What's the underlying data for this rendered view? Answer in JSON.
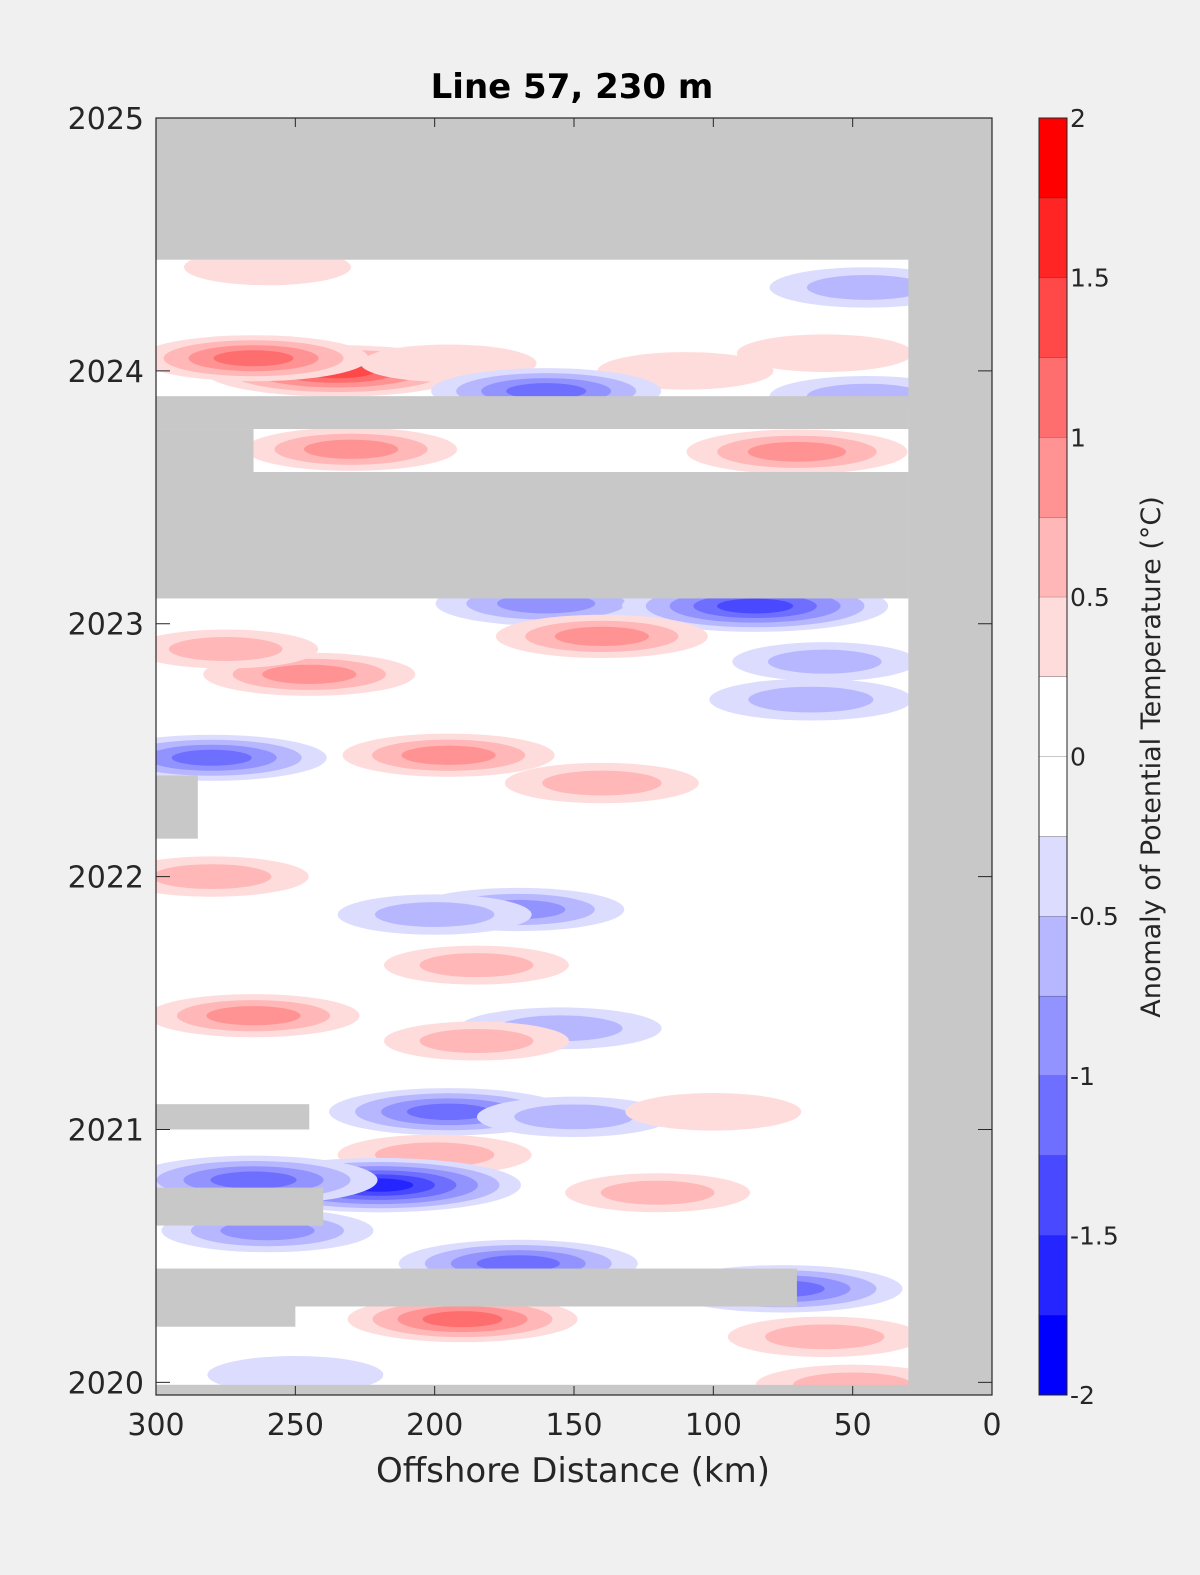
{
  "chart_data": {
    "type": "heatmap",
    "title": "Line 57, 230 m",
    "xlabel": "Offshore Distance (km)",
    "ylabel": "",
    "xlim": [
      300,
      0
    ],
    "ylim": [
      2019.95,
      2025
    ],
    "x_ticks": [
      "300",
      "250",
      "200",
      "150",
      "100",
      "50",
      "0"
    ],
    "x_tick_values": [
      300,
      250,
      200,
      150,
      100,
      50,
      0
    ],
    "y_ticks": [
      "2020",
      "2021",
      "2022",
      "2023",
      "2024",
      "2025"
    ],
    "y_tick_values": [
      2020,
      2021,
      2022,
      2023,
      2024,
      2025
    ],
    "colorbar": {
      "label": "Anomaly of Potential Temperature (°C)",
      "range": [
        -2,
        2
      ],
      "step": 0.25,
      "tick_labels": [
        "2",
        "1.5",
        "1",
        "0.5",
        "0",
        "-0.5",
        "-1",
        "-1.5",
        "-2"
      ],
      "tick_values": [
        2,
        1.5,
        1,
        0.5,
        0,
        -0.5,
        -1,
        -1.5,
        -2
      ]
    },
    "colors": {
      "no_data": "#c8c8c8",
      "axes_background": "#c8c8c8",
      "figure_background": "#f0f0f0",
      "warm_max": "#ff0000",
      "cold_max": "#0000ff"
    },
    "no_data_regions": [
      {
        "x": [
          300,
          0
        ],
        "y": [
          2024.44,
          2025
        ]
      },
      {
        "x": [
          30,
          0
        ],
        "y": [
          2019.95,
          2025
        ]
      },
      {
        "x": [
          300,
          30
        ],
        "y": [
          2023.1,
          2023.6
        ]
      },
      {
        "x": [
          300,
          30
        ],
        "y": [
          2023.77,
          2023.9
        ]
      },
      {
        "x": [
          300,
          265
        ],
        "y": [
          2023.6,
          2023.77
        ]
      },
      {
        "x": [
          300,
          285
        ],
        "y": [
          2022.15,
          2022.4
        ]
      },
      {
        "x": [
          300,
          245
        ],
        "y": [
          2021.0,
          2021.1
        ]
      },
      {
        "x": [
          300,
          240
        ],
        "y": [
          2020.62,
          2020.77
        ]
      },
      {
        "x": [
          300,
          70
        ],
        "y": [
          2020.3,
          2020.45
        ]
      },
      {
        "x": [
          300,
          250
        ],
        "y": [
          2020.22,
          2020.3
        ]
      },
      {
        "x": [
          300,
          30
        ],
        "y": [
          2019.95,
          2019.99
        ]
      }
    ],
    "features": [
      {
        "x": 235,
        "y": 2024.0,
        "value": 1.4
      },
      {
        "x": 265,
        "y": 2024.05,
        "value": 1.0
      },
      {
        "x": 195,
        "y": 2024.03,
        "value": 0.4
      },
      {
        "x": 110,
        "y": 2024.0,
        "value": 0.4
      },
      {
        "x": 60,
        "y": 2024.07,
        "value": 0.4
      },
      {
        "x": 260,
        "y": 2024.41,
        "value": 0.3
      },
      {
        "x": 160,
        "y": 2023.92,
        "value": -1.0
      },
      {
        "x": 45,
        "y": 2023.9,
        "value": -0.6
      },
      {
        "x": 45,
        "y": 2024.33,
        "value": -0.6
      },
      {
        "x": 230,
        "y": 2023.69,
        "value": 0.8
      },
      {
        "x": 70,
        "y": 2023.68,
        "value": 0.9
      },
      {
        "x": 160,
        "y": 2023.08,
        "value": -0.9
      },
      {
        "x": 85,
        "y": 2023.07,
        "value": -1.4
      },
      {
        "x": 140,
        "y": 2022.95,
        "value": 0.8
      },
      {
        "x": 245,
        "y": 2022.8,
        "value": 0.8
      },
      {
        "x": 275,
        "y": 2022.9,
        "value": 0.5
      },
      {
        "x": 60,
        "y": 2022.85,
        "value": -0.5
      },
      {
        "x": 65,
        "y": 2022.7,
        "value": -0.7
      },
      {
        "x": 280,
        "y": 2022.47,
        "value": -1.0
      },
      {
        "x": 195,
        "y": 2022.48,
        "value": 0.8
      },
      {
        "x": 140,
        "y": 2022.37,
        "value": 0.6
      },
      {
        "x": 280,
        "y": 2022.0,
        "value": 0.6
      },
      {
        "x": 170,
        "y": 2021.87,
        "value": -0.8
      },
      {
        "x": 200,
        "y": 2021.85,
        "value": -0.6
      },
      {
        "x": 185,
        "y": 2021.65,
        "value": 0.5
      },
      {
        "x": 265,
        "y": 2021.45,
        "value": 0.8
      },
      {
        "x": 155,
        "y": 2021.4,
        "value": -0.7
      },
      {
        "x": 185,
        "y": 2021.35,
        "value": 0.5
      },
      {
        "x": 195,
        "y": 2021.07,
        "value": -1.1
      },
      {
        "x": 150,
        "y": 2021.05,
        "value": -0.6
      },
      {
        "x": 100,
        "y": 2021.07,
        "value": 0.4
      },
      {
        "x": 200,
        "y": 2020.9,
        "value": 0.6
      },
      {
        "x": 120,
        "y": 2020.75,
        "value": 0.5
      },
      {
        "x": 220,
        "y": 2020.78,
        "value": -1.6
      },
      {
        "x": 265,
        "y": 2020.8,
        "value": -1.2
      },
      {
        "x": 260,
        "y": 2020.6,
        "value": -0.8
      },
      {
        "x": 170,
        "y": 2020.47,
        "value": -1.1
      },
      {
        "x": 75,
        "y": 2020.37,
        "value": -1.1
      },
      {
        "x": 190,
        "y": 2020.25,
        "value": 1.0
      },
      {
        "x": 60,
        "y": 2020.18,
        "value": 0.6
      },
      {
        "x": 250,
        "y": 2020.03,
        "value": -0.4
      },
      {
        "x": 50,
        "y": 2019.99,
        "value": 0.6
      }
    ]
  }
}
